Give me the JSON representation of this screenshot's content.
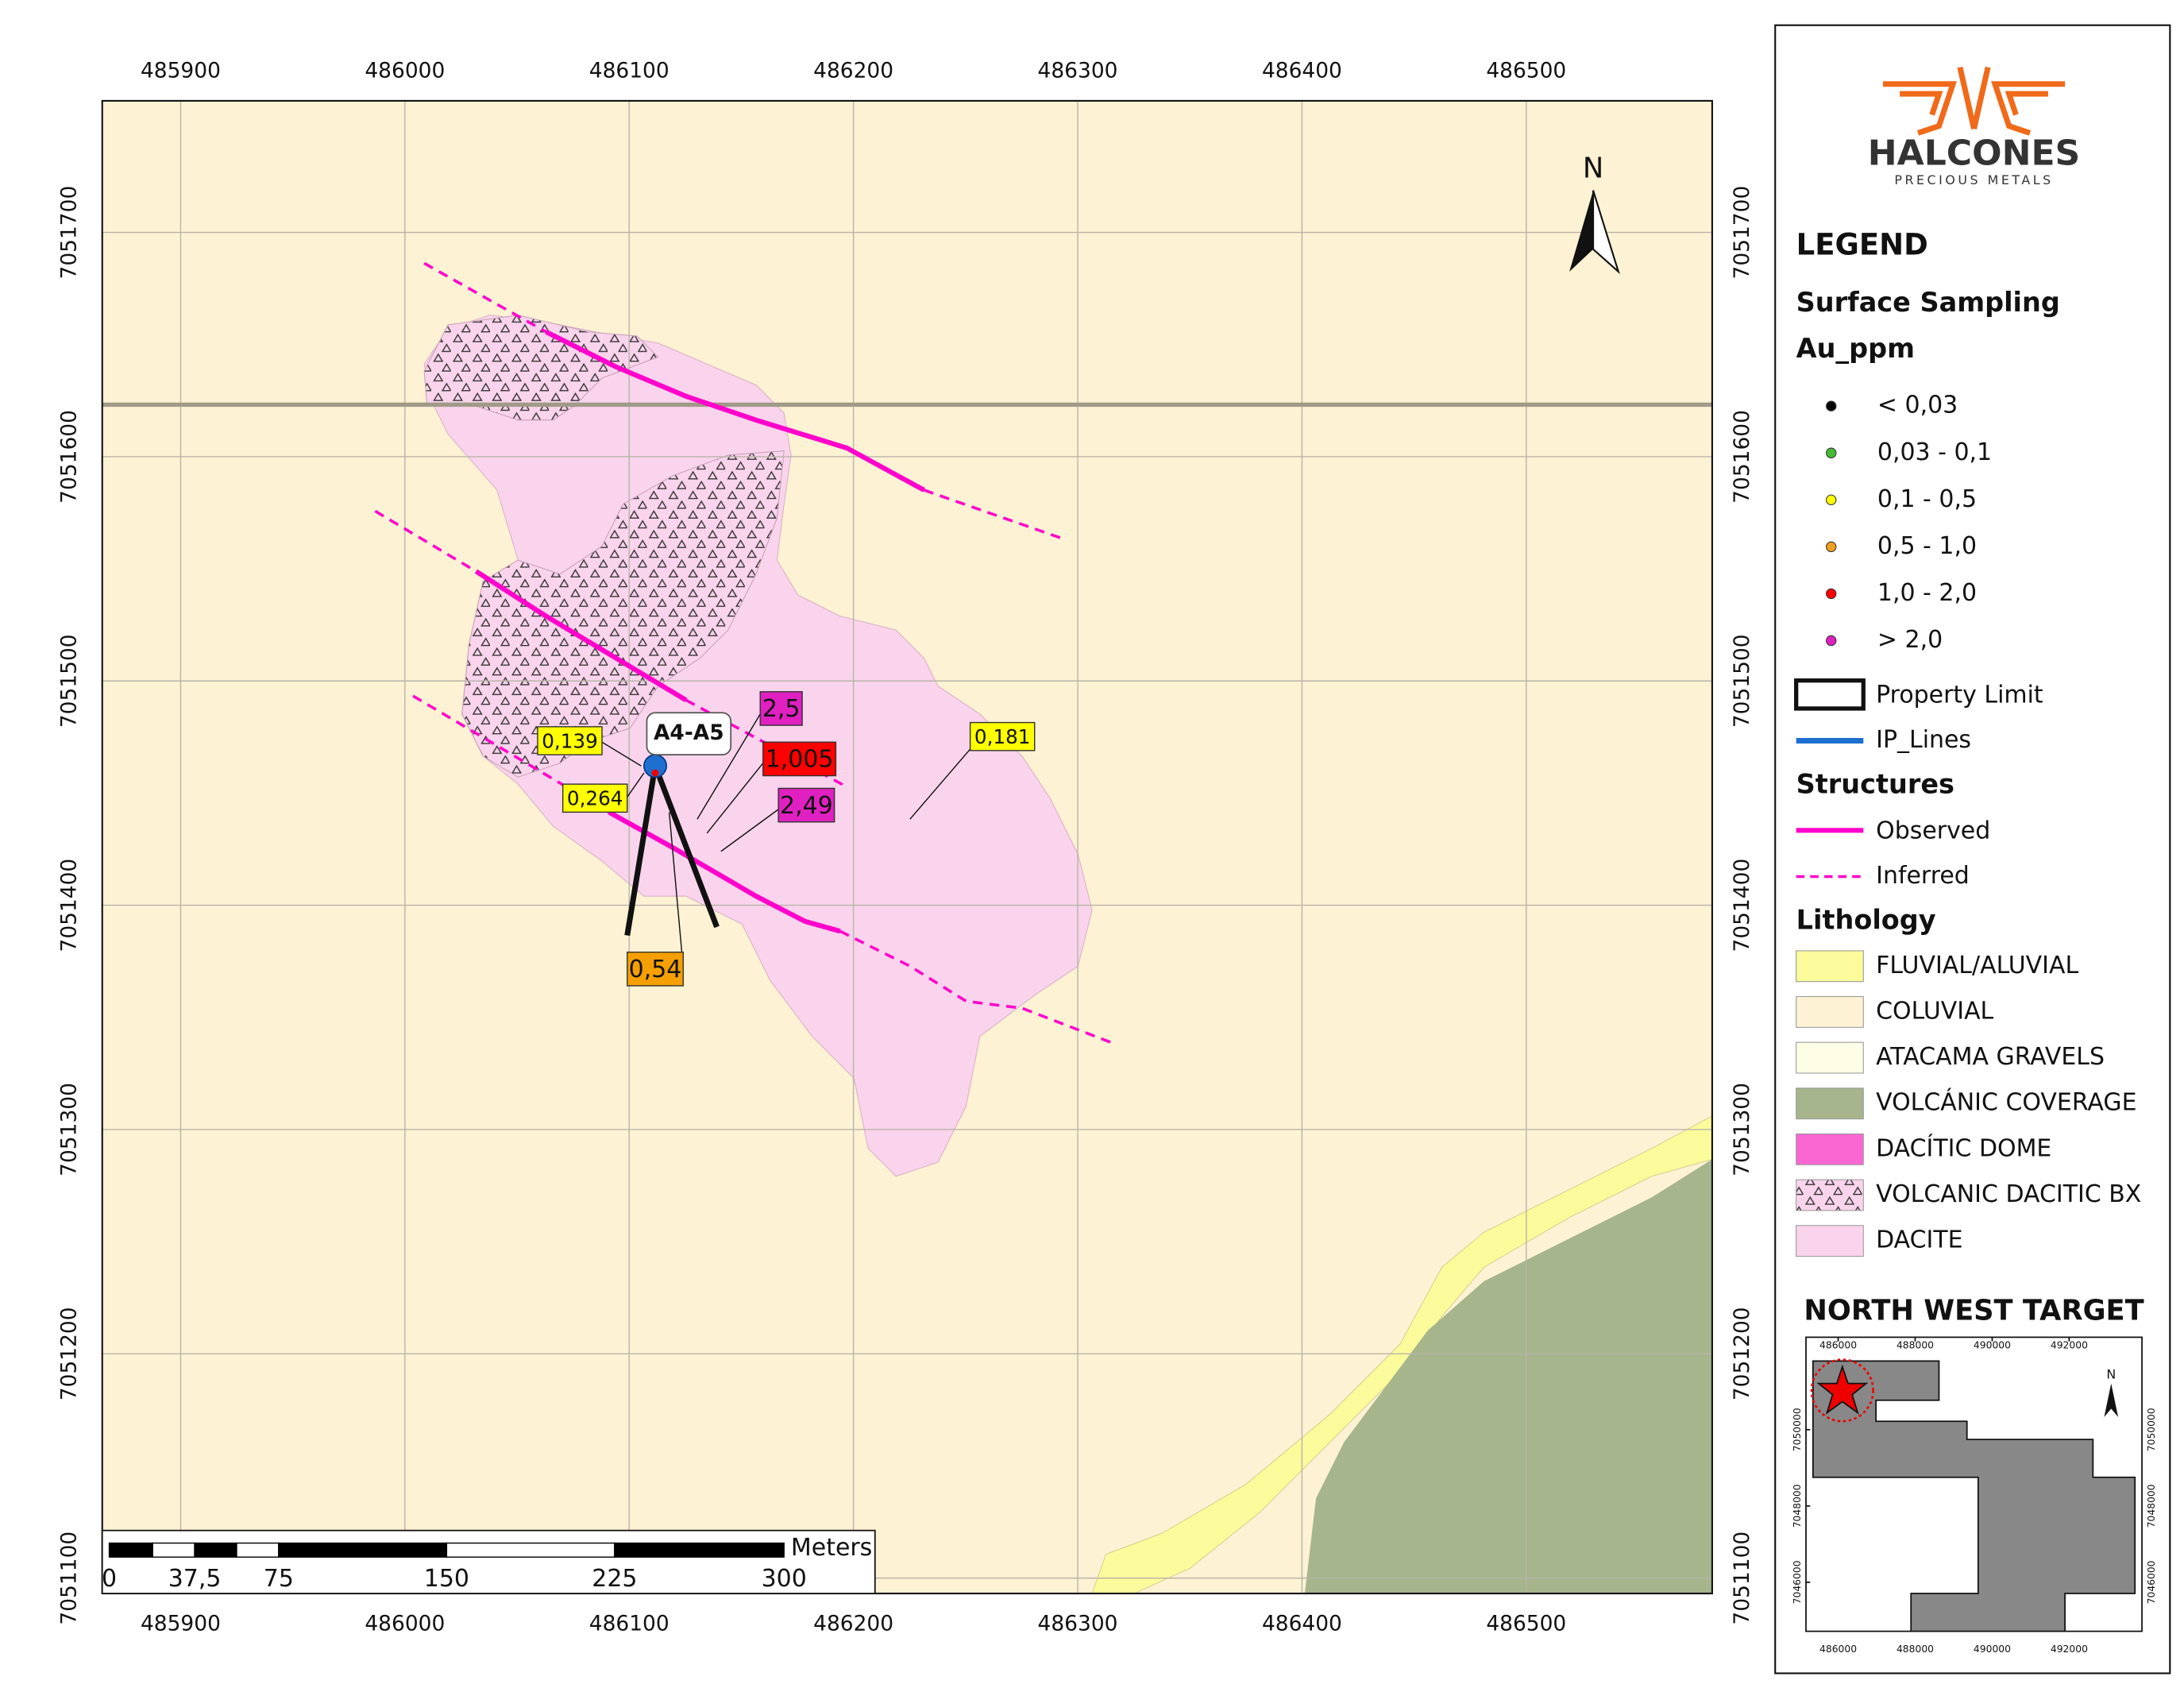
{
  "map": {
    "xticks": [
      485900,
      486000,
      486100,
      486200,
      486300,
      486400,
      486500
    ],
    "yticks": [
      7051100,
      7051200,
      7051300,
      7051400,
      7051500,
      7051600,
      7051700
    ],
    "north": "N",
    "drill_label": "A4-A5",
    "samples": [
      {
        "label": "0,139",
        "color": "#ffff00"
      },
      {
        "label": "0,264",
        "color": "#ffff00"
      },
      {
        "label": "0,181",
        "color": "#ffff00"
      },
      {
        "label": "2,5",
        "color": "#e020c0"
      },
      {
        "label": "1,005",
        "color": "#ff0000"
      },
      {
        "label": "2,49",
        "color": "#e020c0"
      },
      {
        "label": "0,54",
        "color": "#f5a000"
      }
    ],
    "scale": {
      "labels": [
        "0",
        "37,5",
        "75",
        "150",
        "225",
        "300"
      ],
      "unit": "Meters"
    }
  },
  "legend": {
    "logo": "HALCONES",
    "logo_sub": "PRECIOUS METALS",
    "title": "LEGEND",
    "sampling": "Surface Sampling",
    "field": "Au_ppm",
    "au_classes": [
      {
        "label": "< 0,03",
        "color": "#000000"
      },
      {
        "label": "0,03 - 0,1",
        "color": "#44bb33"
      },
      {
        "label": "0,1 - 0,5",
        "color": "#ffff00"
      },
      {
        "label": "0,5 - 1,0",
        "color": "#f0a020"
      },
      {
        "label": "1,0 - 2,0",
        "color": "#ff0000"
      },
      {
        "label": "> 2,0",
        "color": "#e020c0"
      }
    ],
    "property": "Property Limit",
    "ip": "IP_Lines",
    "structures": "Structures",
    "observed": "Observed",
    "inferred": "Inferred",
    "lithology": "Lithology",
    "units": [
      {
        "label": "FLUVIAL/ALUVIAL",
        "color": "#fbfb9b"
      },
      {
        "label": "COLUVIAL",
        "color": "#fdf2d3"
      },
      {
        "label": "ATACAMA GRAVELS",
        "color": "#fefde6"
      },
      {
        "label": "VOLCÁNIC COVERAGE",
        "color": "#a6b58c"
      },
      {
        "label": "DACÍTIC DOME",
        "color": "#fa66d2"
      },
      {
        "label": "VOLCANIC DACITIC BX",
        "color": "#f9d4ec"
      },
      {
        "label": "DACITE",
        "color": "#f9d4ec"
      }
    ]
  },
  "inset": {
    "title": "NORTH WEST TARGET",
    "north": "N",
    "xticks": [
      486000,
      488000,
      490000,
      492000
    ],
    "yticks": [
      7046000,
      7048000,
      7050000
    ]
  }
}
